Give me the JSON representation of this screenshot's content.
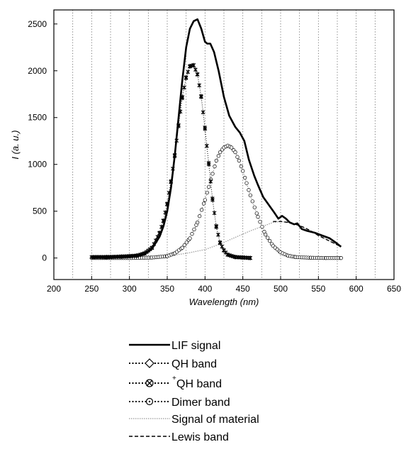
{
  "chart_data": {
    "type": "line",
    "xlabel": "Wavelength (nm)",
    "ylabel": "I (a. u.)",
    "xlim": [
      200,
      650
    ],
    "ylim": [
      -230,
      2650
    ],
    "x_ticks": [
      200,
      250,
      300,
      350,
      400,
      450,
      500,
      550,
      600,
      650
    ],
    "y_ticks": [
      0,
      500,
      1000,
      1500,
      2000,
      2500
    ],
    "grid": "vertical dotted lines every 25 nm",
    "legend_position": "below plot",
    "series": [
      {
        "name": "LIF signal",
        "style": "solid-thick",
        "color": "#000000",
        "x": [
          250,
          270,
          290,
          310,
          320,
          330,
          340,
          345,
          350,
          355,
          360,
          365,
          370,
          375,
          380,
          385,
          390,
          395,
          400,
          403,
          407,
          412,
          418,
          425,
          432,
          440,
          446,
          452,
          458,
          465,
          470,
          477,
          485,
          492,
          497,
          502,
          507,
          512,
          518,
          522,
          528,
          535,
          545,
          555,
          565,
          572,
          580
        ],
        "y": [
          10,
          10,
          12,
          20,
          40,
          100,
          230,
          340,
          500,
          750,
          1100,
          1500,
          1900,
          2250,
          2450,
          2530,
          2550,
          2450,
          2310,
          2290,
          2290,
          2200,
          2000,
          1720,
          1520,
          1400,
          1340,
          1250,
          1050,
          880,
          780,
          650,
          560,
          480,
          420,
          450,
          420,
          380,
          360,
          370,
          310,
          290,
          270,
          240,
          210,
          170,
          120
        ]
      },
      {
        "name": "QH band",
        "style": "dotted-diamond",
        "color": "#000000",
        "x": [],
        "y": []
      },
      {
        "name": "QH band",
        "name_superscript": "+",
        "style": "dotted-x-marker",
        "color": "#000000",
        "x": [
          250,
          270,
          290,
          310,
          320,
          330,
          340,
          345,
          350,
          355,
          360,
          365,
          370,
          375,
          380,
          385,
          390,
          395,
          400,
          405,
          410,
          415,
          420,
          425,
          430,
          440,
          450,
          460
        ],
        "y": [
          10,
          10,
          15,
          25,
          50,
          110,
          270,
          400,
          580,
          820,
          1100,
          1420,
          1720,
          1930,
          2050,
          2060,
          1960,
          1720,
          1380,
          1000,
          620,
          330,
          160,
          80,
          35,
          10,
          5,
          0
        ]
      },
      {
        "name": "Dimer band",
        "style": "dotted-circle",
        "color": "#000000",
        "x": [
          250,
          300,
          330,
          350,
          360,
          370,
          380,
          390,
          400,
          405,
          410,
          415,
          420,
          425,
          430,
          435,
          440,
          445,
          450,
          455,
          460,
          470,
          480,
          490,
          500,
          510,
          520,
          540,
          560,
          580
        ],
        "y": [
          0,
          0,
          5,
          20,
          50,
          110,
          210,
          380,
          620,
          760,
          900,
          1040,
          1130,
          1180,
          1200,
          1180,
          1130,
          1040,
          930,
          800,
          670,
          440,
          250,
          130,
          60,
          25,
          10,
          3,
          0,
          0
        ]
      },
      {
        "name": "Signal of material",
        "style": "thin-gray-dotted",
        "color": "#999999",
        "x": [
          250,
          320,
          350,
          375,
          400,
          420,
          440,
          460,
          480,
          490,
          500,
          510,
          520,
          540,
          560,
          580
        ],
        "y": [
          0,
          0,
          20,
          50,
          90,
          150,
          220,
          290,
          350,
          380,
          390,
          380,
          360,
          290,
          200,
          120
        ]
      },
      {
        "name": "Lewis band",
        "style": "dashed",
        "color": "#000000",
        "x": [
          490,
          500,
          510,
          520,
          530,
          540,
          550,
          560,
          570,
          580
        ],
        "y": [
          390,
          390,
          380,
          360,
          330,
          290,
          240,
          200,
          160,
          120
        ]
      }
    ]
  }
}
